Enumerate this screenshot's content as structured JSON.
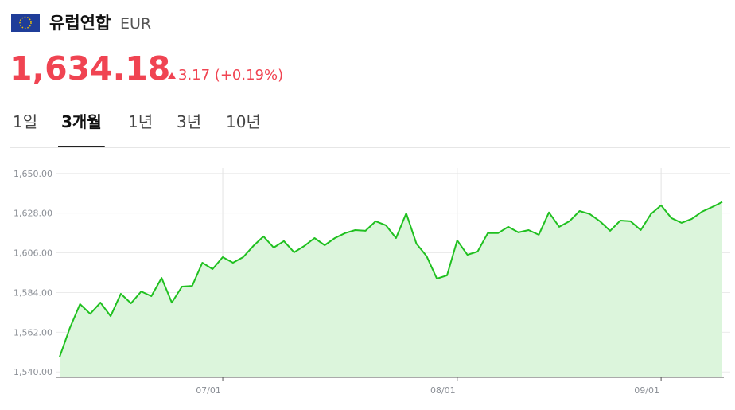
{
  "header": {
    "title": "유럽연합",
    "currency": "EUR",
    "price": "1,634.18",
    "change": "3.17 (+0.19%)"
  },
  "tabs": [
    "1일",
    "3개월",
    "1년",
    "3년",
    "10년"
  ],
  "active_tab": 1,
  "chart_data": {
    "type": "line",
    "color": "#20c020",
    "area_color": "#dcf5dc",
    "categories": [
      null,
      null,
      null,
      null,
      null,
      null,
      null,
      null,
      null,
      null,
      null,
      null,
      null,
      null,
      null,
      null,
      "07/01",
      null,
      null,
      null,
      null,
      null,
      null,
      null,
      null,
      null,
      null,
      null,
      null,
      null,
      null,
      null,
      null,
      null,
      null,
      null,
      null,
      null,
      null,
      "08/01",
      null,
      null,
      null,
      null,
      null,
      null,
      null,
      null,
      null,
      null,
      null,
      null,
      null,
      null,
      null,
      null,
      null,
      null,
      null,
      "09/01",
      null,
      null,
      null,
      null,
      null,
      null
    ],
    "values": [
      1548.4,
      1564.3,
      1577.6,
      1572.2,
      1578.4,
      1570.9,
      1583.3,
      1578.0,
      1584.6,
      1582.0,
      1592.1,
      1578.4,
      1587.3,
      1587.7,
      1600.5,
      1597.0,
      1603.6,
      1600.5,
      1603.6,
      1609.8,
      1615.1,
      1608.9,
      1612.5,
      1606.3,
      1609.8,
      1614.2,
      1610.2,
      1614.2,
      1616.9,
      1618.6,
      1618.2,
      1623.5,
      1621.3,
      1614.2,
      1627.9,
      1611.1,
      1604.1,
      1591.7,
      1593.5,
      1612.9,
      1604.9,
      1606.7,
      1616.9,
      1616.9,
      1620.4,
      1617.3,
      1618.6,
      1616.0,
      1628.4,
      1620.4,
      1623.5,
      1629.2,
      1627.5,
      1623.5,
      1618.2,
      1623.9,
      1623.5,
      1618.6,
      1627.5,
      1632.3,
      1625.3,
      1622.6,
      1624.8,
      1628.8,
      1631.4,
      1634.18
    ],
    "ylim": [
      1537,
      1653
    ],
    "yticks": [
      {
        "value": 1540,
        "label": "1,540.00"
      },
      {
        "value": 1562,
        "label": "1,562.00"
      },
      {
        "value": 1584,
        "label": "1,584.00"
      },
      {
        "value": 1606,
        "label": "1,606.00"
      },
      {
        "value": 1628,
        "label": "1,628.00"
      },
      {
        "value": 1650,
        "label": "1,650.00"
      }
    ],
    "grid": true
  }
}
